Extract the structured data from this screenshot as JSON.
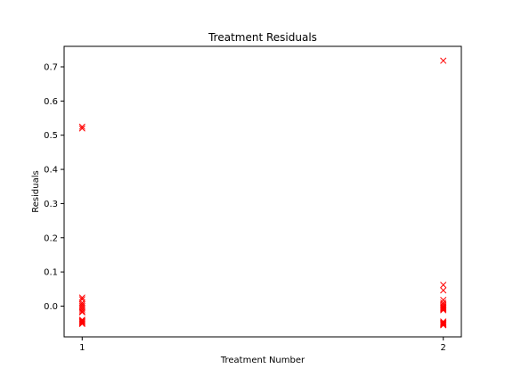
{
  "chart_data": {
    "type": "scatter",
    "title": "Treatment Residuals",
    "xlabel": "Treatment Number",
    "ylabel": "Residuals",
    "xlim": [
      0.95,
      2.05
    ],
    "ylim": [
      -0.09,
      0.76
    ],
    "xticks": [
      1,
      2
    ],
    "yticks": [
      0.0,
      0.1,
      0.2,
      0.3,
      0.4,
      0.5,
      0.6,
      0.7
    ],
    "ytick_labels": [
      "0.0",
      "0.1",
      "0.2",
      "0.3",
      "0.4",
      "0.5",
      "0.6",
      "0.7"
    ],
    "grid": false,
    "marker": "x",
    "marker_color": "#ff0000",
    "series": [
      {
        "x": [
          1,
          1,
          1,
          1,
          1,
          1,
          1,
          1,
          1,
          1,
          1,
          1,
          1,
          1,
          1,
          1,
          1,
          2,
          2,
          2,
          2,
          2,
          2,
          2,
          2,
          2,
          2,
          2,
          2,
          2,
          2,
          2,
          2,
          2
        ],
        "y": [
          0.525,
          0.52,
          0.025,
          0.02,
          0.01,
          0.005,
          0.0,
          -0.005,
          -0.01,
          -0.015,
          -0.018,
          -0.04,
          -0.043,
          -0.045,
          -0.047,
          -0.05,
          -0.052,
          0.718,
          0.062,
          0.046,
          0.018,
          0.01,
          0.005,
          0.0,
          -0.003,
          -0.006,
          -0.009,
          -0.012,
          -0.045,
          -0.048,
          -0.05,
          -0.052,
          -0.054,
          -0.056
        ]
      }
    ]
  }
}
